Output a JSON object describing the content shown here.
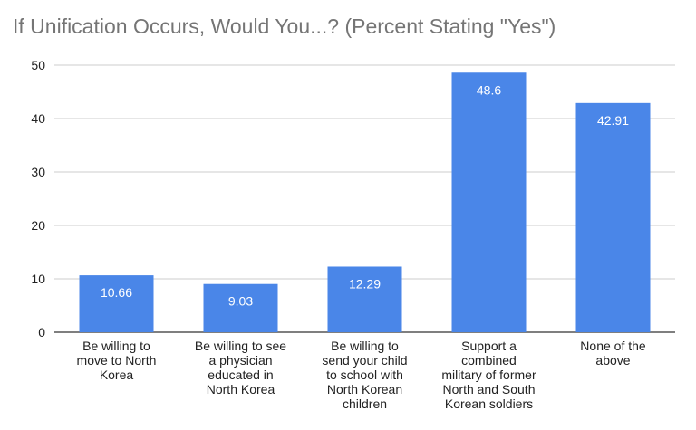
{
  "chart_data": {
    "type": "bar",
    "title": "If Unification Occurs, Would You...? (Percent Stating \"Yes\")",
    "xlabel": "",
    "ylabel": "",
    "ylim": [
      0,
      50
    ],
    "yticks": [
      0,
      10,
      20,
      30,
      40,
      50
    ],
    "grid": true,
    "legend": "none",
    "bar_color": "#4a86e8",
    "categories": [
      [
        "Be willing to",
        "move to North",
        "Korea"
      ],
      [
        "Be willing to see",
        "a physician",
        "educated in",
        "North Korea"
      ],
      [
        "Be willing to",
        "send your child",
        "to school with",
        "North Korean",
        "children"
      ],
      [
        "Support a",
        "combined",
        "military of former",
        "North and South",
        "Korean soldiers"
      ],
      [
        "None of the",
        "above"
      ]
    ],
    "values": [
      10.66,
      9.03,
      12.29,
      48.6,
      42.91
    ],
    "value_labels": [
      "10.66",
      "9.03",
      "12.29",
      "48.6",
      "42.91"
    ]
  }
}
